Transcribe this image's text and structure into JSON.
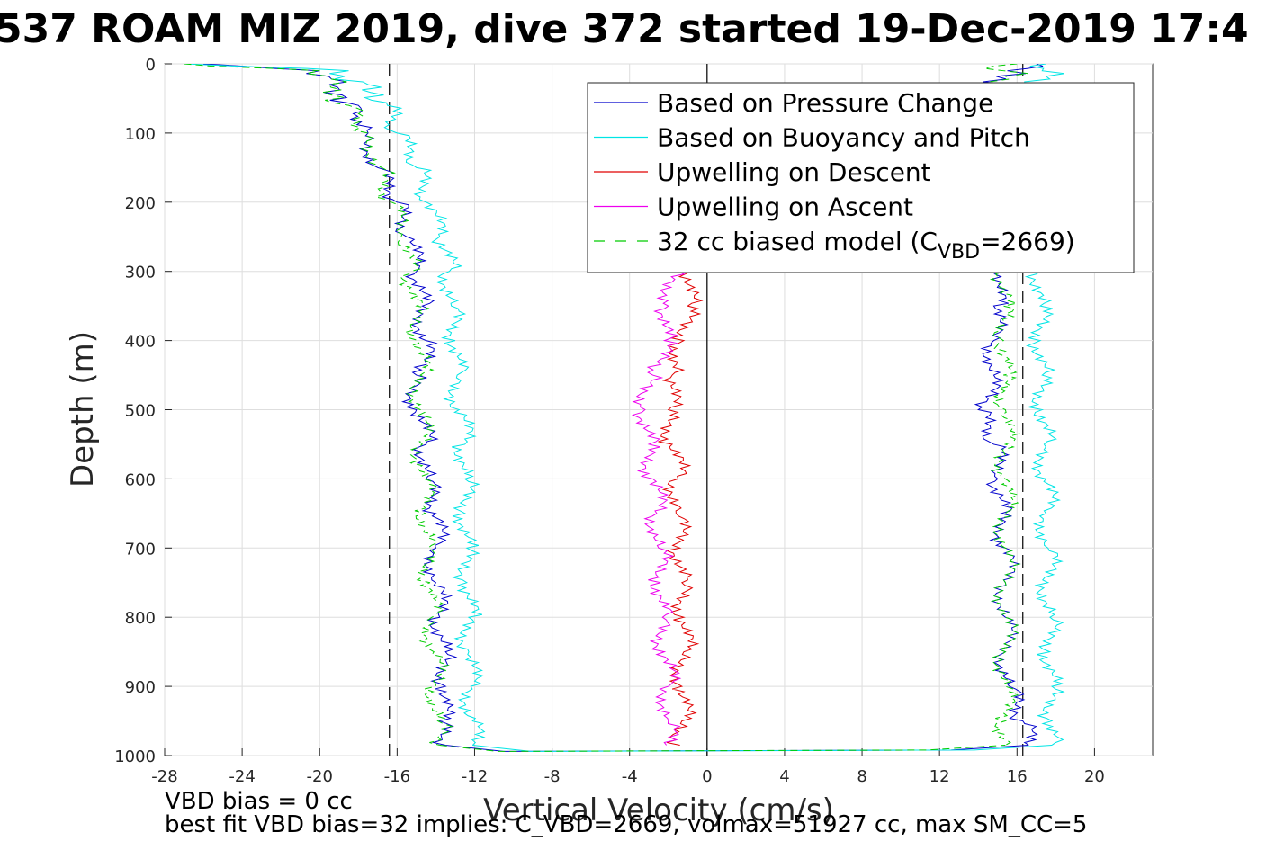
{
  "chart_data": {
    "type": "line",
    "title": "537 ROAM MIZ 2019, dive 372 started 19-Dec-2019 17:4",
    "xlabel": "Vertical Velocity (cm/s)",
    "ylabel": "Depth (m)",
    "xlim": [
      -28,
      23
    ],
    "ylim": [
      0,
      1000
    ],
    "y_reversed": true,
    "grid": true,
    "xticks": [
      "-28",
      "-24",
      "-20",
      "-16",
      "-12",
      "-8",
      "-4",
      "0",
      "4",
      "8",
      "12",
      "16",
      "20"
    ],
    "yticks": [
      "0",
      "100",
      "200",
      "300",
      "400",
      "500",
      "600",
      "700",
      "800",
      "900",
      "1000"
    ],
    "legend_placement": "top-right",
    "legend": [
      {
        "label": "Based on Pressure Change",
        "color": "#0000cc",
        "dash": false
      },
      {
        "label": "Based on Buoyancy and Pitch",
        "color": "#00e5e5",
        "dash": false
      },
      {
        "label": "Upwelling on Descent",
        "color": "#e00000",
        "dash": false
      },
      {
        "label": "Upwelling on Ascent",
        "color": "#ee00ee",
        "dash": false
      },
      {
        "label": "32 cc biased model (C",
        "label_sub": "VBD",
        "label_suffix": "=2669)",
        "color": "#00cc00",
        "dash": true
      }
    ],
    "reference_lines": [
      {
        "x": -16.4,
        "style": "dashed",
        "color": "#000000"
      },
      {
        "x": 16.3,
        "style": "dashed",
        "color": "#000000"
      },
      {
        "x": 0,
        "style": "solid",
        "color": "#000000"
      }
    ],
    "series": [
      {
        "color": "#0000cc",
        "depth": [
          0,
          10,
          30,
          60,
          100,
          150,
          200,
          250,
          300,
          350,
          400,
          450,
          500,
          550,
          600,
          650,
          700,
          750,
          800,
          850,
          900,
          950,
          985
        ],
        "descent": [
          -26,
          -20,
          -19.5,
          -18,
          -17.5,
          -17,
          -16,
          -15.5,
          -15,
          -14.7,
          -14.5,
          -15,
          -15,
          -14.5,
          -14.5,
          -14,
          -14,
          -14,
          -13.8,
          -13.5,
          -13.5,
          -13.8,
          -13.5
        ],
        "ascent": [
          17,
          15.5,
          15.6,
          15.5,
          15.5,
          15.5,
          15.5,
          15.5,
          15.4,
          14.8,
          14.8,
          14.8,
          14.0,
          14.8,
          15.0,
          15.2,
          15.4,
          15.4,
          15.4,
          15.4,
          15.6,
          16.3,
          16.6
        ]
      },
      {
        "color": "#00e5e5",
        "depth": [
          0,
          10,
          30,
          60,
          100,
          150,
          200,
          250,
          300,
          350,
          400,
          450,
          500,
          550,
          600,
          650,
          700,
          750,
          800,
          850,
          900,
          950,
          985
        ],
        "descent": [
          -27,
          -18.5,
          -17.5,
          -16.5,
          -16,
          -15,
          -14.5,
          -13.8,
          -13.3,
          -13.2,
          -13,
          -12.9,
          -12.8,
          -12.5,
          -12.5,
          -12.5,
          -12.4,
          -12.4,
          -12.3,
          -12.3,
          -12.2,
          -12.1,
          -12.1
        ],
        "ascent": [
          17.5,
          17.3,
          17.2,
          17.2,
          17.2,
          17.2,
          17.2,
          17.2,
          17.2,
          17.2,
          17.2,
          17.3,
          17.3,
          17.4,
          17.5,
          17.5,
          17.6,
          17.6,
          17.7,
          17.7,
          17.8,
          17.8,
          17.8
        ]
      },
      {
        "color": "#e00000",
        "depth": [
          300,
          350,
          400,
          450,
          500,
          550,
          600,
          650,
          700,
          750,
          800,
          850,
          900,
          950,
          985
        ],
        "values": [
          -0.8,
          -1.0,
          -1.2,
          -1.8,
          -2.0,
          -1.8,
          -1.5,
          -1.6,
          -1.4,
          -1.3,
          -1.2,
          -1.2,
          -1.3,
          -1.3,
          -1.4
        ]
      },
      {
        "color": "#ee00ee",
        "depth": [
          300,
          350,
          400,
          450,
          500,
          550,
          600,
          650,
          700,
          750,
          800,
          850,
          900,
          950,
          985
        ],
        "values": [
          -1.5,
          -2.0,
          -2.2,
          -2.8,
          -3.2,
          -3.0,
          -2.8,
          -2.6,
          -2.5,
          -2.4,
          -2.3,
          -2.2,
          -2.0,
          -2.0,
          -2.1
        ]
      },
      {
        "color": "#00cc00",
        "dash": true,
        "depth": [
          0,
          10,
          30,
          60,
          100,
          150,
          200,
          250,
          300,
          350,
          400,
          450,
          500,
          550,
          600,
          650,
          700,
          750,
          800,
          850,
          900,
          950,
          985
        ],
        "descent": [
          -27,
          -20,
          -19.5,
          -18.5,
          -17.5,
          -16.8,
          -16.3,
          -15.8,
          -15.3,
          -15,
          -14.9,
          -14.8,
          -14.8,
          -14.7,
          -14.6,
          -14.5,
          -14.4,
          -14.3,
          -14.2,
          -14.1,
          -14.0,
          -13.9,
          -13.8
        ],
        "ascent": [
          16,
          15.3,
          15.3,
          15.3,
          15.3,
          15.3,
          15.3,
          15.3,
          15.3,
          15.3,
          15.3,
          15.3,
          15.4,
          15.4,
          15.4,
          15.4,
          15.4,
          15.4,
          15.4,
          15.4,
          15.4,
          15.4,
          15.4
        ]
      }
    ]
  },
  "footer": {
    "line1": "VBD bias = 0 cc",
    "line2": "best fit VBD bias=32 implies: C_VBD=2669, volmax=51927 cc, max SM_CC=5"
  }
}
